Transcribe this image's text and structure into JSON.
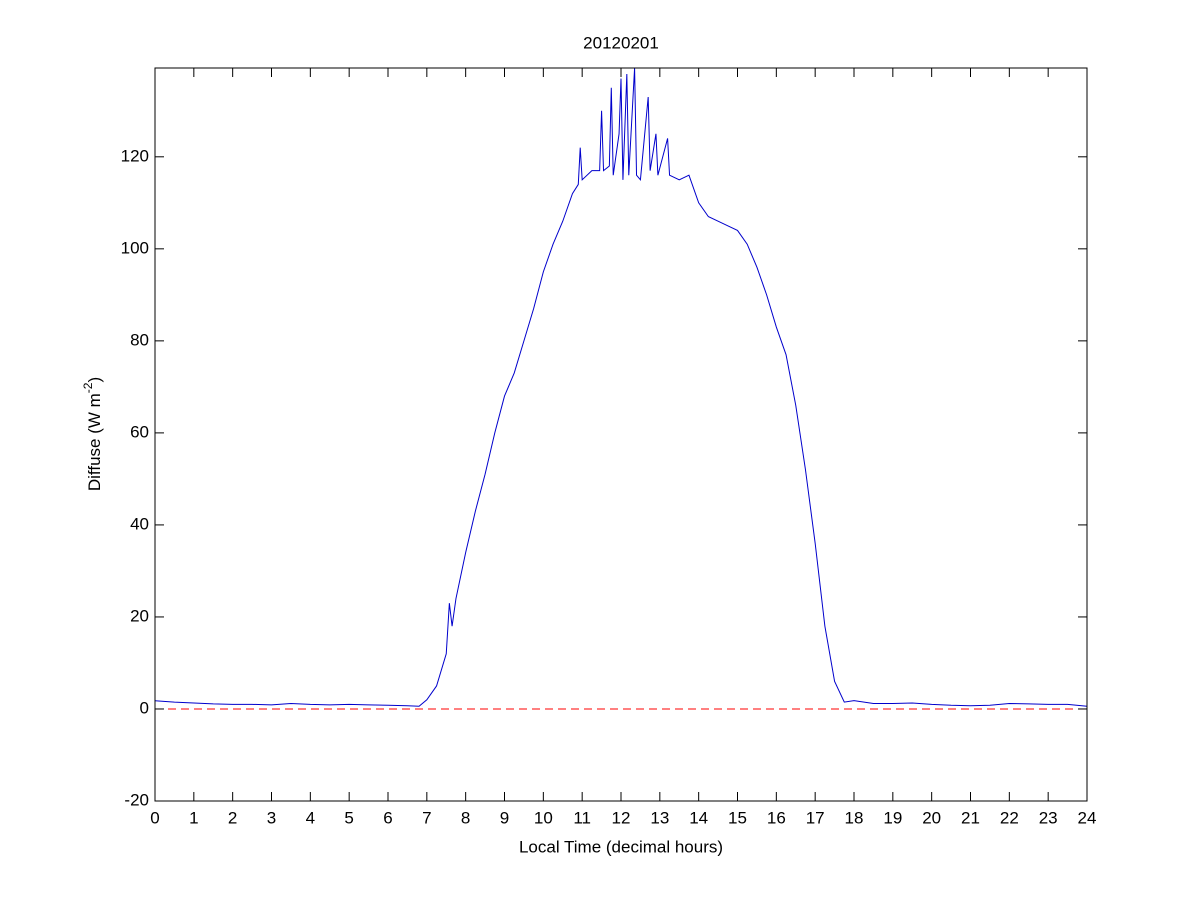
{
  "chart_data": {
    "type": "line",
    "title": "20120201",
    "x_label": "Local Time (decimal hours)",
    "y_label": {
      "text": "Diffuse (W m",
      "superscript": "-2",
      "suffix": ")"
    },
    "xlim": [
      0,
      24
    ],
    "xticks": [
      0,
      1,
      2,
      3,
      4,
      5,
      6,
      7,
      8,
      9,
      10,
      11,
      12,
      13,
      14,
      15,
      16,
      17,
      18,
      19,
      20,
      21,
      22,
      23,
      24
    ],
    "ylim": [
      -20,
      139.3
    ],
    "yticks": [
      -20,
      0,
      20,
      40,
      60,
      80,
      100,
      120
    ],
    "grid": false,
    "series": [
      {
        "color": "#0000cc",
        "style": "solid",
        "x": [
          0,
          0.5,
          1,
          1.5,
          2,
          2.5,
          3,
          3.5,
          4,
          4.5,
          5,
          5.5,
          6,
          6.5,
          6.8,
          7,
          7.25,
          7.5,
          7.58,
          7.65,
          7.75,
          8,
          8.25,
          8.5,
          8.75,
          9,
          9.25,
          9.5,
          9.75,
          10,
          10.25,
          10.5,
          10.75,
          10.9,
          10.95,
          11,
          11.25,
          11.45,
          11.5,
          11.55,
          11.7,
          11.75,
          11.8,
          11.95,
          12,
          12.05,
          12.15,
          12.2,
          12.35,
          12.4,
          12.5,
          12.7,
          12.75,
          12.9,
          12.95,
          13.2,
          13.25,
          13.5,
          13.75,
          14,
          14.25,
          14.5,
          14.75,
          15,
          15.25,
          15.5,
          15.75,
          16,
          16.25,
          16.5,
          16.75,
          17,
          17.25,
          17.5,
          17.75,
          18,
          18.5,
          19,
          19.5,
          20,
          20.5,
          21,
          21.5,
          22,
          22.5,
          23,
          23.5,
          24
        ],
        "values": [
          1.8,
          1.5,
          1.3,
          1.1,
          1.0,
          1.0,
          0.9,
          1.2,
          1.0,
          0.9,
          1.0,
          0.9,
          0.8,
          0.7,
          0.6,
          2.0,
          5,
          12,
          23,
          18,
          24,
          34,
          43,
          51,
          60,
          68,
          73,
          80,
          87,
          95,
          101,
          106,
          112,
          114,
          122,
          115,
          117,
          117,
          130,
          117,
          118,
          135,
          116,
          125,
          137,
          115,
          138,
          116,
          139.3,
          116,
          115,
          133,
          117,
          125,
          116,
          124,
          116,
          115,
          116,
          110,
          107,
          106,
          105,
          104,
          101,
          96,
          90,
          83,
          77,
          66,
          52,
          36,
          18,
          6,
          1.5,
          1.8,
          1.2,
          1.2,
          1.3,
          1.0,
          0.8,
          0.7,
          0.8,
          1.2,
          1.1,
          1.0,
          1.0,
          0.6
        ]
      },
      {
        "color": "#ff0000",
        "style": "dashed",
        "x": [
          0,
          24
        ],
        "values": [
          0,
          0
        ]
      }
    ]
  }
}
